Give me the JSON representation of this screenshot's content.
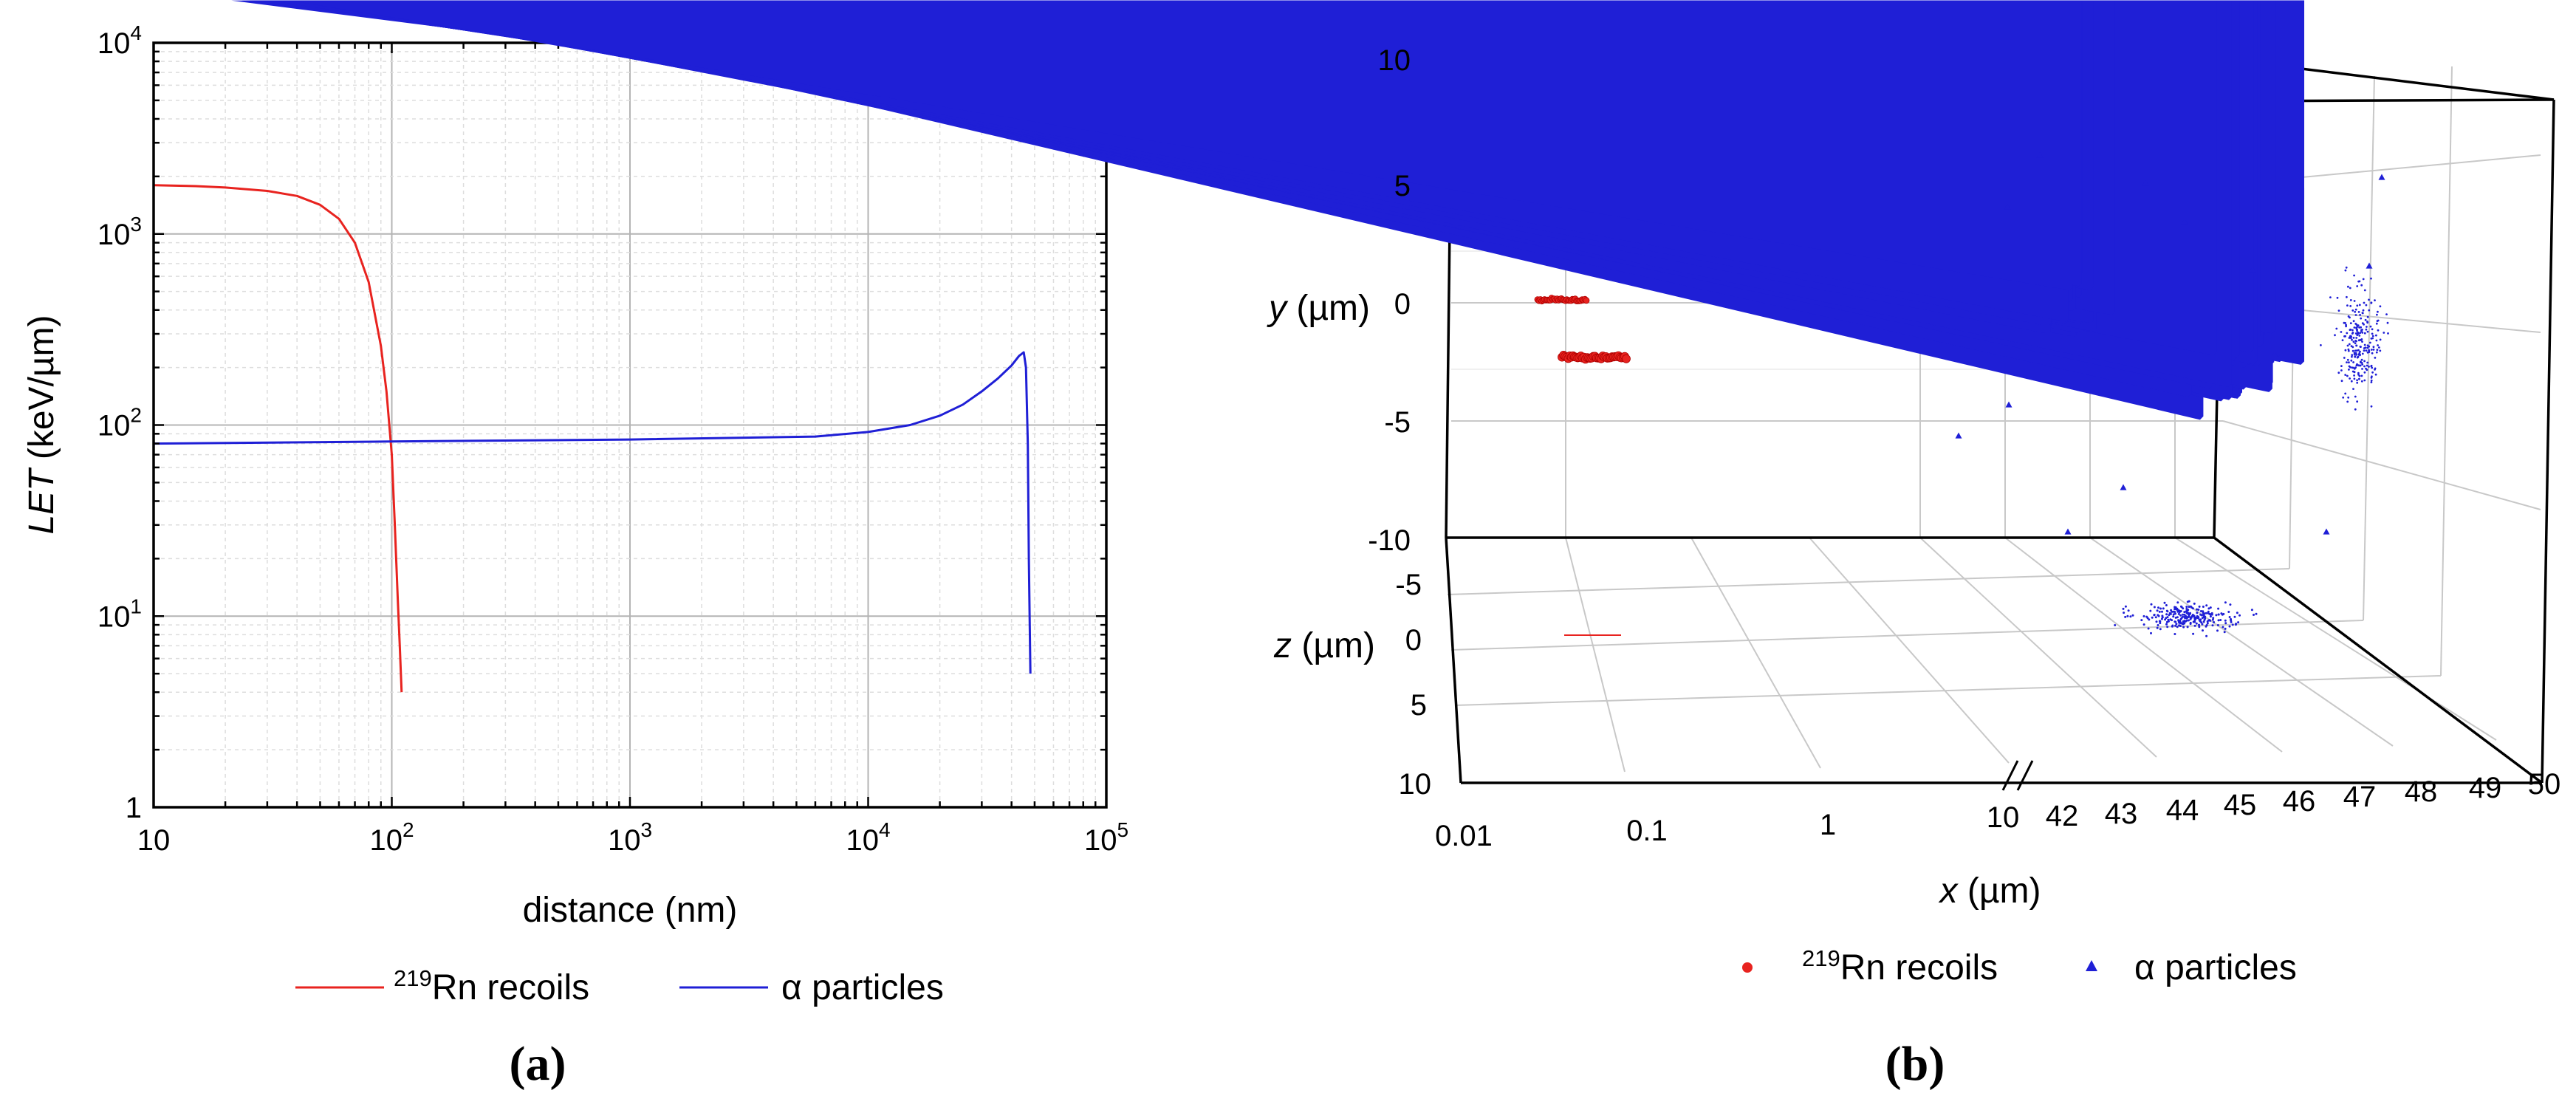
{
  "chart_data": [
    {
      "id": "a",
      "type": "line",
      "panel_label": "(a)",
      "title": "",
      "xlabel": "distance (nm)",
      "ylabel_italic": "LET",
      "ylabel_rest": " (keV/µm)",
      "xscale": "log",
      "yscale": "log",
      "xlim": [
        10,
        100000
      ],
      "ylim": [
        1,
        10000
      ],
      "grid": true,
      "xticks": [
        {
          "base": "10",
          "exp": ""
        },
        {
          "base": "10",
          "exp": "2"
        },
        {
          "base": "10",
          "exp": "3"
        },
        {
          "base": "10",
          "exp": "4"
        },
        {
          "base": "10",
          "exp": "5"
        }
      ],
      "yticks": [
        {
          "base": "1",
          "exp": ""
        },
        {
          "base": "10",
          "exp": "1"
        },
        {
          "base": "10",
          "exp": "2"
        },
        {
          "base": "10",
          "exp": "3"
        },
        {
          "base": "10",
          "exp": "4"
        }
      ],
      "legend_position": "bottom",
      "series": [
        {
          "name": "219Rn recoils",
          "legend_sup": "219",
          "legend_text": "Rn recoils",
          "color": "#e8231f",
          "x": [
            10,
            15,
            20,
            30,
            40,
            50,
            60,
            70,
            80,
            90,
            95,
            100,
            103,
            106,
            108,
            110
          ],
          "y": [
            1800,
            1780,
            1750,
            1680,
            1580,
            1420,
            1200,
            900,
            560,
            260,
            150,
            70,
            30,
            12,
            7,
            4
          ]
        },
        {
          "name": "α particles",
          "legend_text": "α particles",
          "color": "#1f1fd6",
          "x": [
            10,
            100,
            1000,
            6000,
            10000,
            15000,
            20000,
            25000,
            30000,
            35000,
            40000,
            43000,
            45000,
            46000,
            46800,
            47300,
            48000
          ],
          "y": [
            80,
            82,
            84,
            87,
            92,
            100,
            112,
            128,
            150,
            175,
            205,
            230,
            240,
            200,
            80,
            20,
            5
          ]
        }
      ]
    },
    {
      "id": "b",
      "type": "scatter",
      "panel_label": "(b)",
      "title": "",
      "xlabel_italic": "x",
      "xlabel_rest": " (µm)",
      "ylabel_italic": "y",
      "ylabel_rest": " (µm)",
      "zlabel_italic": "z",
      "zlabel_rest": " (µm)",
      "xaxis_break": "10 / 42",
      "xticks_log": [
        "0.01",
        "0.1",
        "1",
        "10"
      ],
      "xticks_lin": [
        "42",
        "43",
        "44",
        "45",
        "46",
        "47",
        "48",
        "49",
        "50"
      ],
      "yticks": [
        "10",
        "5",
        "0",
        "-5",
        "-10"
      ],
      "zticks": [
        "-5",
        "0",
        "5",
        "10"
      ],
      "legend_position": "bottom",
      "series": [
        {
          "name": "219Rn recoils",
          "legend_sup": "219",
          "legend_text": "Rn recoils",
          "marker": "circle",
          "color": "#e8231f",
          "clusters": [
            {
              "x_range": [
                0.02,
                0.05
              ],
              "y": 0,
              "z": 0
            },
            {
              "x_range": [
                0.03,
                0.1
              ],
              "y": -2.3,
              "z": -3
            }
          ]
        },
        {
          "name": "α particles",
          "legend_text": "α particles",
          "marker": "triangle",
          "color": "#1f1fd6",
          "clusters": [
            {
              "x_center": 45,
              "y_center": -1.5,
              "z_center": 0,
              "spread_um": 1
            }
          ]
        }
      ]
    }
  ]
}
